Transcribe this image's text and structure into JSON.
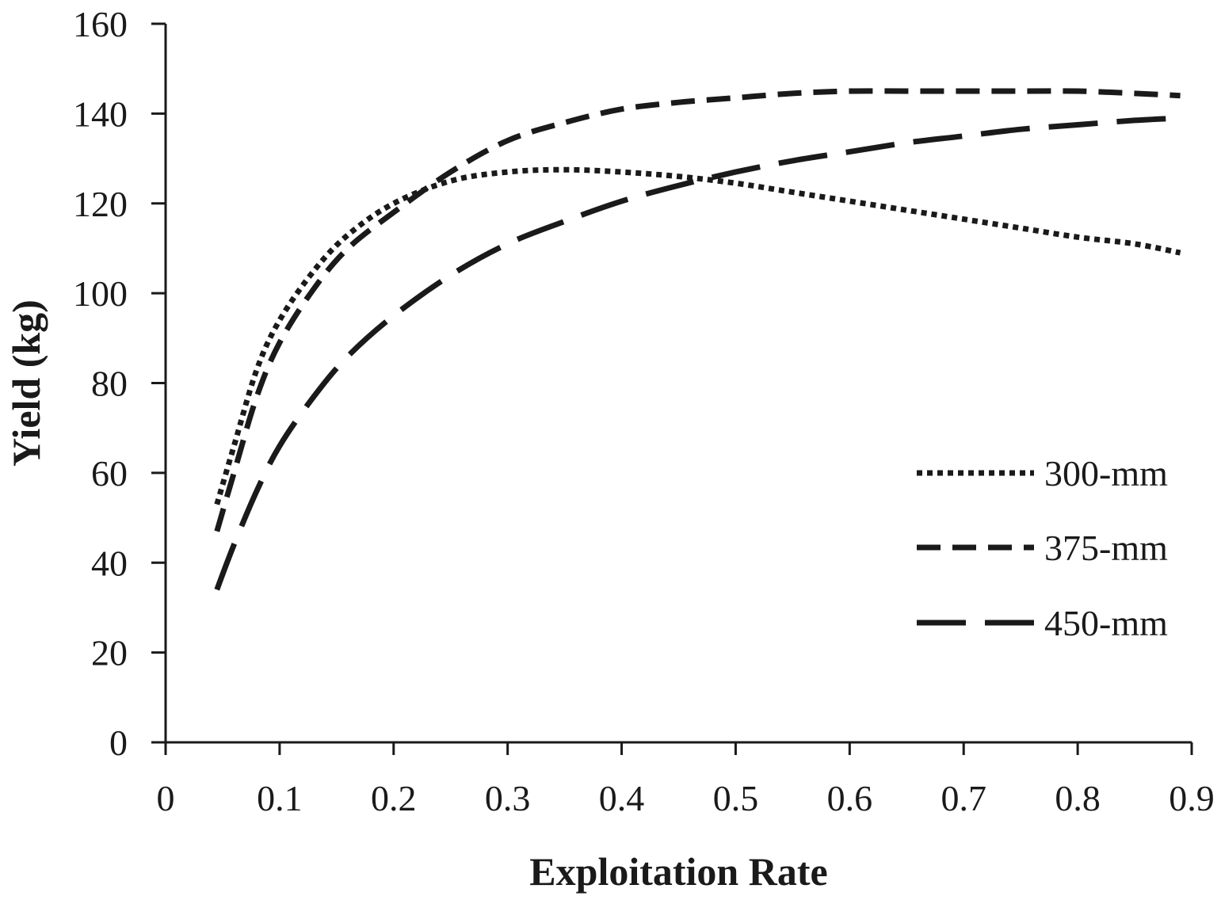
{
  "chart_data": {
    "type": "line",
    "title": "",
    "xlabel": "Exploitation Rate",
    "ylabel": "Yield (kg)",
    "xlim": [
      0,
      0.9
    ],
    "ylim": [
      0,
      160
    ],
    "x_ticks": [
      "0",
      "0.1",
      "0.2",
      "0.3",
      "0.4",
      "0.5",
      "0.6",
      "0.7",
      "0.8",
      "0.9"
    ],
    "y_ticks": [
      "0",
      "20",
      "40",
      "60",
      "80",
      "100",
      "120",
      "140",
      "160"
    ],
    "grid": false,
    "legend_position": "right",
    "series": [
      {
        "name": "300-mm",
        "style": "dotted",
        "x": [
          0.045,
          0.06,
          0.08,
          0.1,
          0.13,
          0.16,
          0.2,
          0.25,
          0.3,
          0.35,
          0.4,
          0.45,
          0.5,
          0.55,
          0.6,
          0.65,
          0.7,
          0.75,
          0.8,
          0.85,
          0.89
        ],
        "y": [
          53,
          66,
          83,
          94,
          105,
          113,
          120,
          125,
          127,
          127.5,
          127,
          126,
          124.5,
          122.5,
          120.5,
          118.5,
          116.5,
          114.5,
          112.5,
          111,
          109
        ]
      },
      {
        "name": "375-mm",
        "style": "dashed",
        "x": [
          0.045,
          0.06,
          0.08,
          0.1,
          0.13,
          0.16,
          0.2,
          0.25,
          0.3,
          0.35,
          0.4,
          0.45,
          0.5,
          0.55,
          0.6,
          0.65,
          0.7,
          0.75,
          0.8,
          0.85,
          0.89
        ],
        "y": [
          47,
          60,
          77,
          89,
          101,
          110,
          118,
          127,
          134,
          138,
          141,
          142.5,
          143.5,
          144.5,
          145,
          145,
          145,
          145,
          145,
          144.5,
          144
        ]
      },
      {
        "name": "450-mm",
        "style": "long-dash",
        "x": [
          0.045,
          0.06,
          0.08,
          0.1,
          0.13,
          0.16,
          0.2,
          0.25,
          0.3,
          0.35,
          0.4,
          0.45,
          0.5,
          0.55,
          0.6,
          0.65,
          0.7,
          0.75,
          0.8,
          0.85,
          0.89
        ],
        "y": [
          34,
          44,
          56,
          66,
          77,
          86,
          95,
          104,
          111,
          116,
          120.5,
          124,
          127,
          129.5,
          131.5,
          133.5,
          135,
          136.5,
          137.5,
          138.5,
          139
        ]
      }
    ]
  }
}
